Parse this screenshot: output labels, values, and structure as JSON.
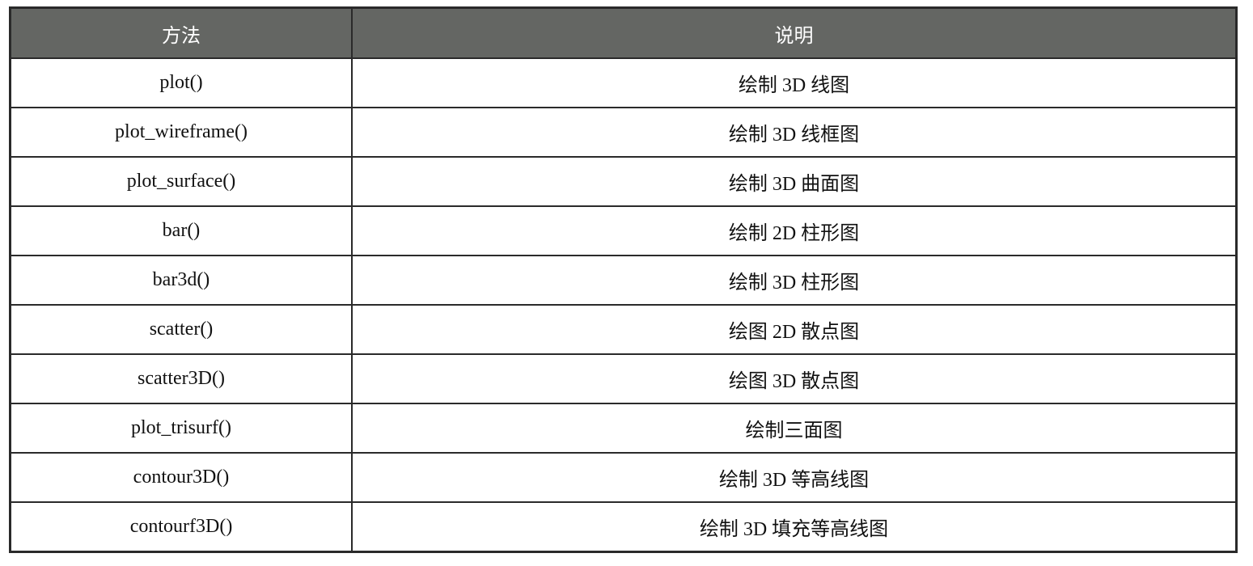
{
  "table": {
    "headers": [
      "方法",
      "说明"
    ],
    "rows": [
      [
        "plot()",
        "绘制 3D 线图"
      ],
      [
        "plot_wireframe()",
        "绘制 3D 线框图"
      ],
      [
        "plot_surface()",
        "绘制 3D 曲面图"
      ],
      [
        "bar()",
        "绘制 2D 柱形图"
      ],
      [
        "bar3d()",
        "绘制 3D 柱形图"
      ],
      [
        "scatter()",
        "绘图 2D 散点图"
      ],
      [
        "scatter3D()",
        "绘图 3D 散点图"
      ],
      [
        "plot_trisurf()",
        "绘制三面图"
      ],
      [
        "contour3D()",
        "绘制 3D 等高线图"
      ],
      [
        "contourf3D()",
        "绘制 3D 填充等高线图"
      ]
    ]
  },
  "colors": {
    "header_bg": "#646663",
    "header_text": "#ffffff",
    "border": "#2a2a2a"
  }
}
